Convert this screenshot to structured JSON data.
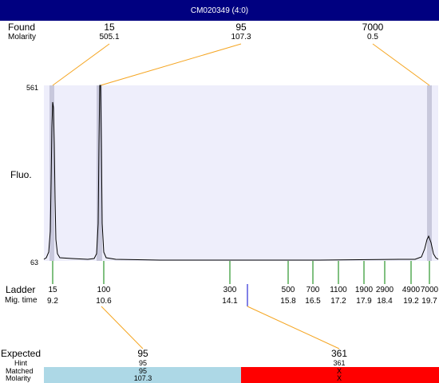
{
  "window": {
    "title": "CM020349 (4:0)"
  },
  "found": {
    "label": "Found",
    "molarity_label": "Molarity",
    "peaks": [
      {
        "size": "15",
        "molarity": "505.1"
      },
      {
        "size": "95",
        "molarity": "107.3"
      },
      {
        "size": "7000",
        "molarity": "0.5"
      }
    ]
  },
  "electropherogram": {
    "y_axis_label": "Fluo.",
    "y_max_label": "561",
    "y_min_label": "63"
  },
  "ladder": {
    "label": "Ladder",
    "mig_time_label": "Mig. time",
    "bands": [
      {
        "size": "15",
        "time": "9.2"
      },
      {
        "size": "100",
        "time": "10.6"
      },
      {
        "size": "300",
        "time": "14.1"
      },
      {
        "size": "500",
        "time": "15.8"
      },
      {
        "size": "700",
        "time": "16.5"
      },
      {
        "size": "1100",
        "time": "17.2"
      },
      {
        "size": "1900",
        "time": "17.9"
      },
      {
        "size": "2900",
        "time": "18.4"
      },
      {
        "size": "4900",
        "time": "19.2"
      },
      {
        "size": "7000",
        "time": "19.7"
      }
    ]
  },
  "expected": {
    "label": "Expected",
    "hint_label": "Hint",
    "matched_label": "Matched",
    "molarity_label": "Molarity",
    "entries": [
      {
        "size": "95",
        "hint": "95",
        "matched": "95",
        "molarity": "107.3",
        "status_color": "#add8e6"
      },
      {
        "size": "361",
        "hint": "361",
        "matched": "X",
        "molarity": "X",
        "status_color": "#ff0000"
      }
    ]
  },
  "colors": {
    "titlebar": "#000080",
    "connector": "#f5a623",
    "ladder_tick": "#008000",
    "expected_marker": "#0000cc",
    "plot_bg": "#eeeefb",
    "peak_highlight": "#c8c8dc"
  }
}
